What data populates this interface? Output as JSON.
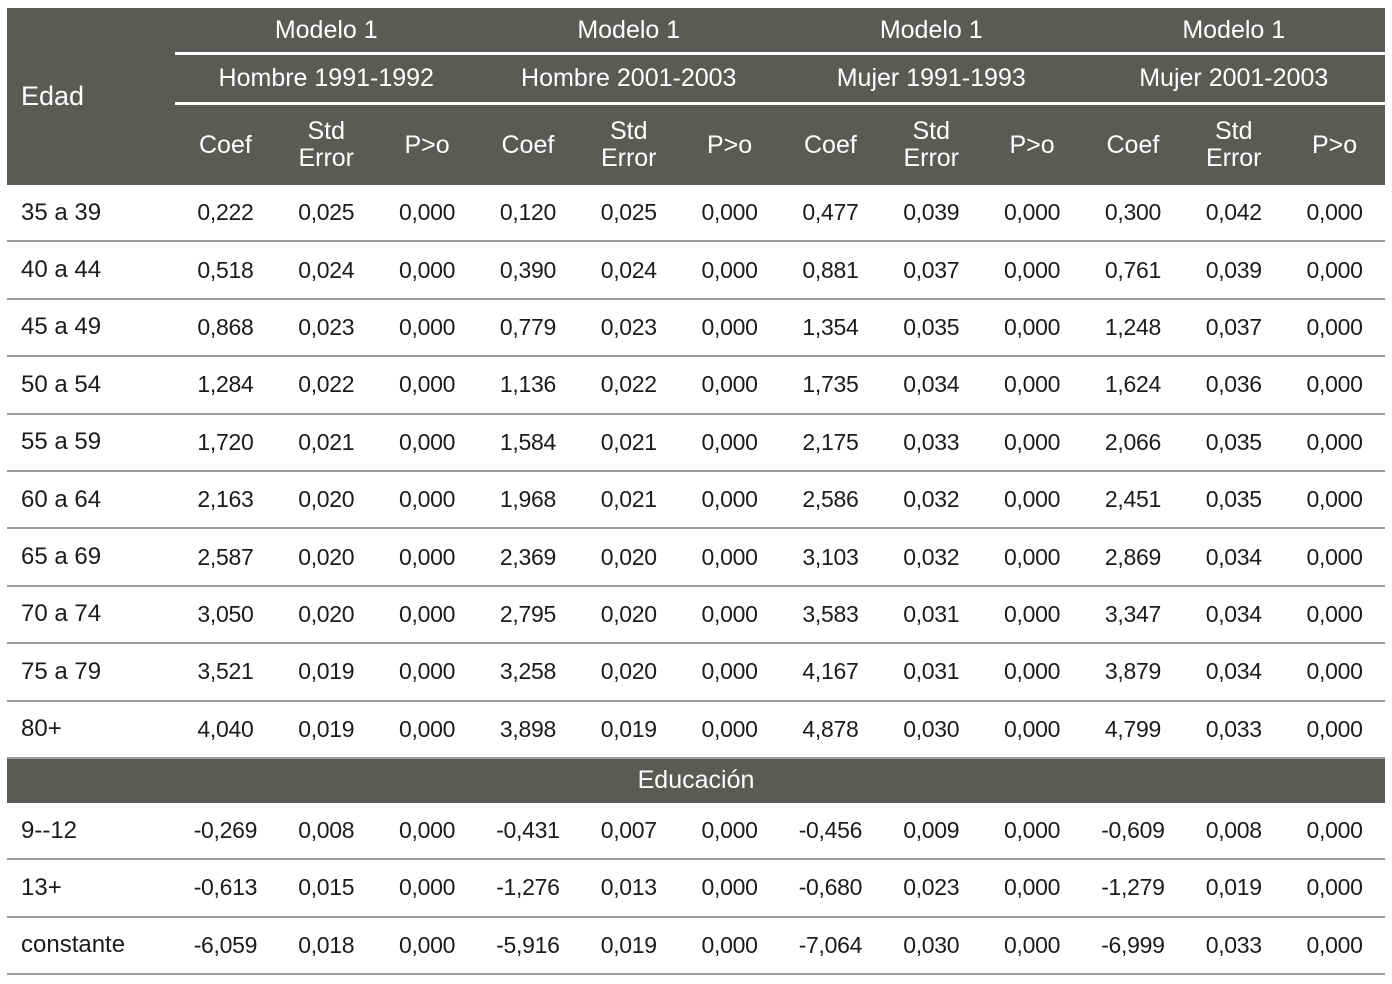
{
  "chart_data": {
    "type": "table",
    "title": "",
    "row_header": "Edad",
    "stat_columns": [
      "Coef",
      "Std Error",
      "P>o"
    ],
    "groups": [
      {
        "model_label": "Modelo 1",
        "period_label": "Hombre 1991-1992"
      },
      {
        "model_label": "Modelo 1",
        "period_label": "Hombre 2001-2003"
      },
      {
        "model_label": "Modelo 1",
        "period_label": "Mujer 1991-1993"
      },
      {
        "model_label": "Modelo 1",
        "period_label": "Mujer 2001-2003"
      }
    ],
    "rows": [
      {
        "label": "35 a 39",
        "values": [
          "0,222",
          "0,025",
          "0,000",
          "0,120",
          "0,025",
          "0,000",
          "0,477",
          "0,039",
          "0,000",
          "0,300",
          "0,042",
          "0,000"
        ]
      },
      {
        "label": "40 a 44",
        "values": [
          "0,518",
          "0,024",
          "0,000",
          "0,390",
          "0,024",
          "0,000",
          "0,881",
          "0,037",
          "0,000",
          "0,761",
          "0,039",
          "0,000"
        ]
      },
      {
        "label": "45 a 49",
        "values": [
          "0,868",
          "0,023",
          "0,000",
          "0,779",
          "0,023",
          "0,000",
          "1,354",
          "0,035",
          "0,000",
          "1,248",
          "0,037",
          "0,000"
        ]
      },
      {
        "label": "50 a 54",
        "values": [
          "1,284",
          "0,022",
          "0,000",
          "1,136",
          "0,022",
          "0,000",
          "1,735",
          "0,034",
          "0,000",
          "1,624",
          "0,036",
          "0,000"
        ]
      },
      {
        "label": "55 a 59",
        "values": [
          "1,720",
          "0,021",
          "0,000",
          "1,584",
          "0,021",
          "0,000",
          "2,175",
          "0,033",
          "0,000",
          "2,066",
          "0,035",
          "0,000"
        ]
      },
      {
        "label": "60 a 64",
        "values": [
          "2,163",
          "0,020",
          "0,000",
          "1,968",
          "0,021",
          "0,000",
          "2,586",
          "0,032",
          "0,000",
          "2,451",
          "0,035",
          "0,000"
        ]
      },
      {
        "label": "65 a 69",
        "values": [
          "2,587",
          "0,020",
          "0,000",
          "2,369",
          "0,020",
          "0,000",
          "3,103",
          "0,032",
          "0,000",
          "2,869",
          "0,034",
          "0,000"
        ]
      },
      {
        "label": "70 a 74",
        "values": [
          "3,050",
          "0,020",
          "0,000",
          "2,795",
          "0,020",
          "0,000",
          "3,583",
          "0,031",
          "0,000",
          "3,347",
          "0,034",
          "0,000"
        ]
      },
      {
        "label": "75 a 79",
        "values": [
          "3,521",
          "0,019",
          "0,000",
          "3,258",
          "0,020",
          "0,000",
          "4,167",
          "0,031",
          "0,000",
          "3,879",
          "0,034",
          "0,000"
        ]
      },
      {
        "label": "80+",
        "values": [
          "4,040",
          "0,019",
          "0,000",
          "3,898",
          "0,019",
          "0,000",
          "4,878",
          "0,030",
          "0,000",
          "4,799",
          "0,033",
          "0,000"
        ]
      },
      {
        "section": "Educación"
      },
      {
        "label": "9--12",
        "values": [
          "-0,269",
          "0,008",
          "0,000",
          "-0,431",
          "0,007",
          "0,000",
          "-0,456",
          "0,009",
          "0,000",
          "-0,609",
          "0,008",
          "0,000"
        ]
      },
      {
        "label": "13+",
        "values": [
          "-0,613",
          "0,015",
          "0,000",
          "-1,276",
          "0,013",
          "0,000",
          "-0,680",
          "0,023",
          "0,000",
          "-1,279",
          "0,019",
          "0,000"
        ]
      },
      {
        "label": "constante",
        "values": [
          "-6,059",
          "0,018",
          "0,000",
          "-5,916",
          "0,019",
          "0,000",
          "-7,064",
          "0,030",
          "0,000",
          "-6,999",
          "0,033",
          "0,000"
        ]
      }
    ]
  },
  "colors": {
    "header_bg": "#5c5a57",
    "header_text": "#ffffff",
    "row_line": "#9b9a98",
    "body_text": "#1b1b1b"
  }
}
